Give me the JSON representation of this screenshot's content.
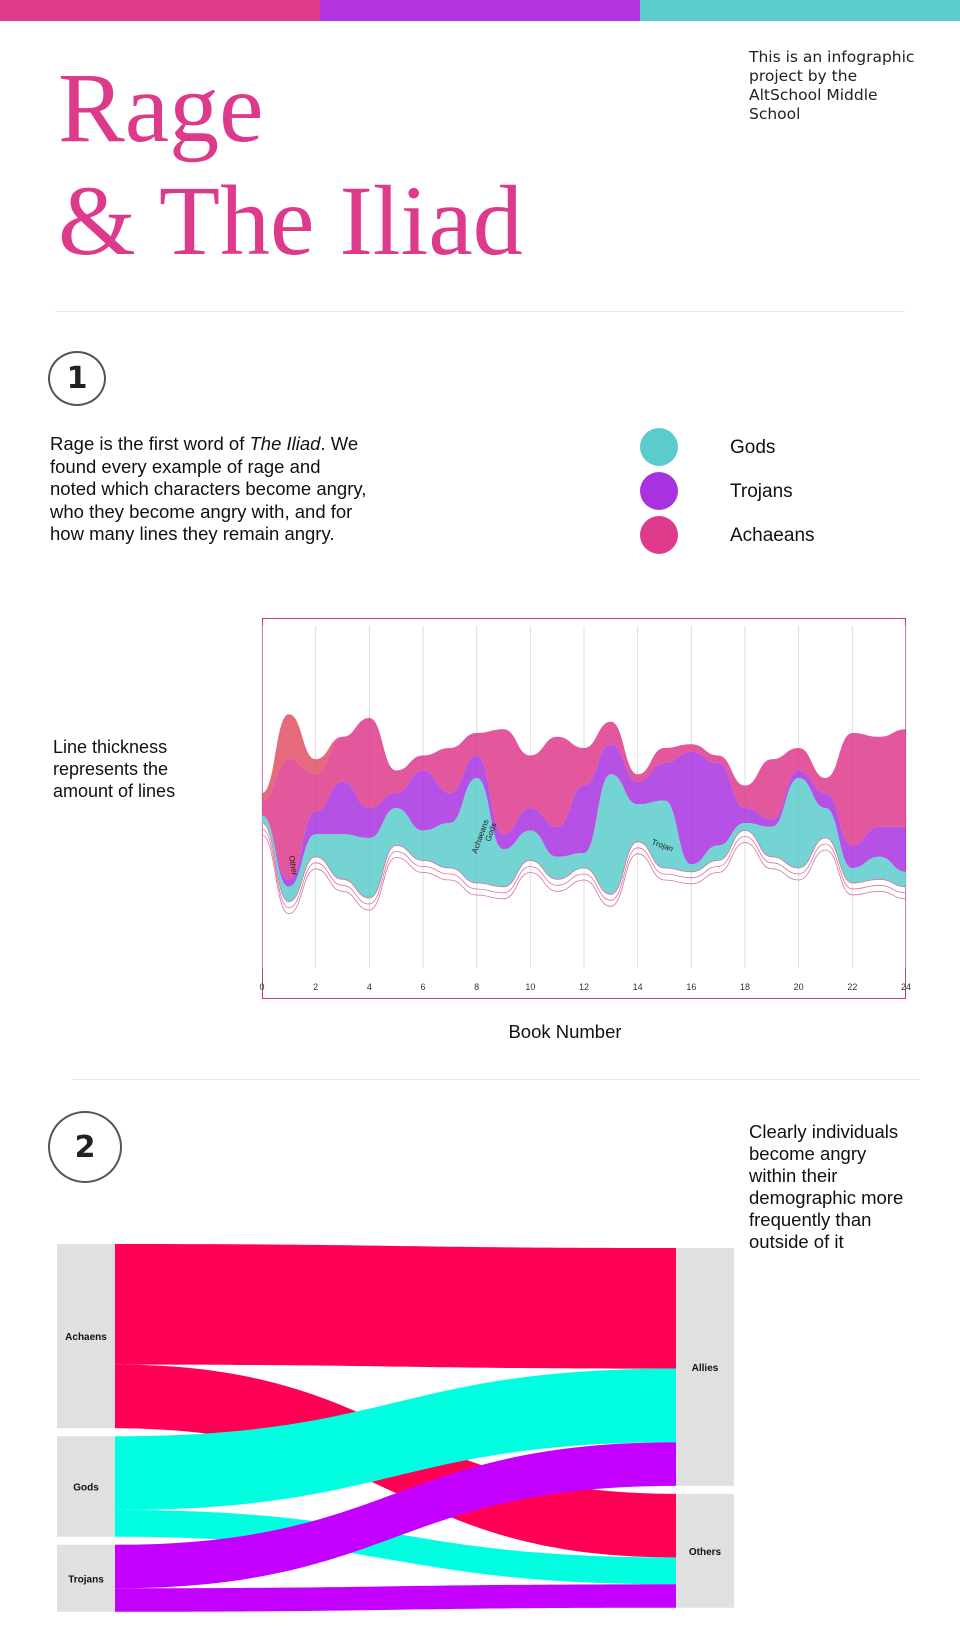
{
  "header": {
    "title_line1": "Rage",
    "title_line2": "& The Iliad",
    "byline": "This is an infographic project by the AltSchool Middle School"
  },
  "colors": {
    "gods": "#5ccbcb",
    "trojans": "#a932e0",
    "achaeans": "#de3a8c",
    "other": "#e05064",
    "accent_bar": [
      "#de3a8c",
      "#b233e0",
      "#5ccbcb"
    ]
  },
  "section1": {
    "number": "1",
    "intro_before": "Rage is the first word of ",
    "intro_italic": "The Iliad",
    "intro_after": ". We found every example of rage and noted which characters become angry, who they become angry with, and for how many lines they remain angry.",
    "legend": [
      {
        "label": "Gods",
        "color": "#5ccbcb"
      },
      {
        "label": "Trojans",
        "color": "#a932e0"
      },
      {
        "label": "Achaeans",
        "color": "#de3a8c"
      }
    ],
    "side_note": "Line thickness represents the amount of lines",
    "x_axis_title": "Book Number"
  },
  "section2": {
    "number": "2",
    "right_note": "Clearly individuals become angry within their demographic more frequently than outside of it"
  },
  "chart_data": [
    {
      "type": "area",
      "subtype": "streamgraph",
      "xlabel": "Book Number",
      "ylabel": "",
      "xlim": [
        0,
        24
      ],
      "x_ticks": [
        "0",
        "2",
        "4",
        "6",
        "8",
        "10",
        "12",
        "14",
        "16",
        "18",
        "20",
        "22",
        "24"
      ],
      "grid": true,
      "x": [
        0,
        1,
        2,
        3,
        4,
        5,
        6,
        7,
        8,
        9,
        10,
        11,
        12,
        13,
        14,
        15,
        16,
        17,
        18,
        19,
        20,
        21,
        22,
        23,
        24
      ],
      "series": [
        {
          "name": "Other",
          "color": "#e05064",
          "values": [
            1,
            6,
            2,
            0,
            0,
            0,
            0,
            0,
            0,
            0,
            0,
            0,
            0,
            0,
            0,
            0,
            0,
            0,
            0,
            0,
            0,
            0,
            0,
            0,
            0
          ]
        },
        {
          "name": "Achaeans",
          "color": "#de3a8c",
          "values": [
            2,
            16,
            5,
            6,
            12,
            3,
            2,
            6,
            3,
            14,
            7,
            12,
            5,
            3,
            1,
            2,
            1,
            1,
            3,
            8,
            3,
            2,
            15,
            12,
            13
          ]
        },
        {
          "name": "Trojans",
          "color": "#a932e0",
          "values": [
            0,
            1,
            3,
            7,
            4,
            2,
            8,
            4,
            3,
            2,
            3,
            4,
            9,
            4,
            3,
            5,
            15,
            11,
            2,
            1,
            1,
            2,
            3,
            4,
            6
          ]
        },
        {
          "name": "Gods",
          "color": "#5ccbcb",
          "values": [
            1,
            2,
            3,
            6,
            8,
            5,
            4,
            6,
            14,
            5,
            4,
            3,
            2,
            16,
            5,
            9,
            1,
            2,
            1,
            4,
            12,
            4,
            2,
            3,
            2
          ]
        }
      ],
      "stream_labels": [
        "Other",
        "Achaeans",
        "Gods",
        "Trojan"
      ]
    },
    {
      "type": "sankey",
      "sources": [
        "Achaens",
        "Gods",
        "Trojans"
      ],
      "targets": [
        "Allies",
        "Others"
      ],
      "flows": [
        {
          "source": "Achaens",
          "target": "Allies",
          "value": 36,
          "color": "#ff0055"
        },
        {
          "source": "Achaens",
          "target": "Others",
          "value": 19,
          "color": "#ff0055"
        },
        {
          "source": "Gods",
          "target": "Allies",
          "value": 22,
          "color": "#00ffe1"
        },
        {
          "source": "Gods",
          "target": "Others",
          "value": 8,
          "color": "#00ffe1"
        },
        {
          "source": "Trojans",
          "target": "Allies",
          "value": 13,
          "color": "#c300ff"
        },
        {
          "source": "Trojans",
          "target": "Others",
          "value": 7,
          "color": "#c300ff"
        }
      ]
    }
  ]
}
